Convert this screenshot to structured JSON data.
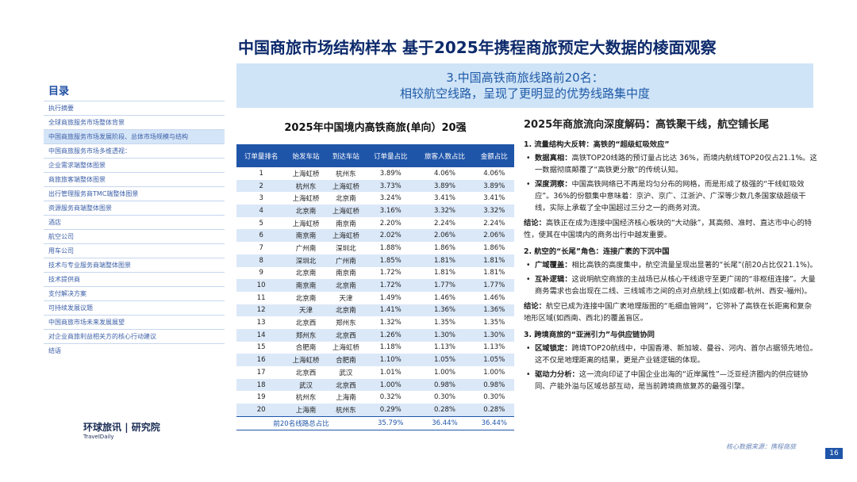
{
  "header": {
    "title": "中国商旅市场结构样本 基于2025年携程商旅预定大数据的棱面观察"
  },
  "sidebar": {
    "title": "目录",
    "items": [
      "执行摘要",
      "全球商旅服务市场整体背景",
      "中国商旅服务市场发展阶段、总体市场规模与结构",
      "中国商旅服务市场多维透视：",
      "企业需求端整体图景",
      "商旅旅客端整体图景",
      "出行管理服务商TMC端整体图景",
      "资源服务商端整体图景",
      "酒店",
      "航空公司",
      "用车公司",
      "技术与专业服务商端整体图景",
      "技术提供商",
      "支付解决方案",
      "可持续发展议题",
      "中国商旅市场未来发展展望",
      "对企业商旅利益相关方的核心行动建议",
      "结语"
    ],
    "logo": {
      "brand": "环球旅讯",
      "brand_en": "TravelDaily",
      "institute": "研究院"
    }
  },
  "banner": {
    "line1": "3.中国高铁商旅线路前20名：",
    "line2": "相较航空线路，呈现了更明显的优势线路集中度"
  },
  "table": {
    "title": "2025年中国境内高铁商旅(单向）20强",
    "headers": [
      "订单量排名",
      "始发车站",
      "到达车站",
      "订单量占比",
      "旅客人数占比",
      "金额占比"
    ],
    "rows": [
      [
        "1",
        "上海虹桥",
        "杭州东",
        "3.89%",
        "4.06%",
        "4.06%"
      ],
      [
        "2",
        "杭州东",
        "上海虹桥",
        "3.73%",
        "3.89%",
        "3.89%"
      ],
      [
        "3",
        "上海虹桥",
        "北京南",
        "3.24%",
        "3.41%",
        "3.41%"
      ],
      [
        "4",
        "北京南",
        "上海虹桥",
        "3.16%",
        "3.32%",
        "3.32%"
      ],
      [
        "5",
        "上海虹桥",
        "南京南",
        "2.20%",
        "2.24%",
        "2.24%"
      ],
      [
        "6",
        "南京南",
        "上海虹桥",
        "2.02%",
        "2.06%",
        "2.06%"
      ],
      [
        "7",
        "广州南",
        "深圳北",
        "1.88%",
        "1.86%",
        "1.86%"
      ],
      [
        "8",
        "深圳北",
        "广州南",
        "1.85%",
        "1.81%",
        "1.81%"
      ],
      [
        "9",
        "北京南",
        "南京南",
        "1.72%",
        "1.81%",
        "1.81%"
      ],
      [
        "10",
        "南京南",
        "北京南",
        "1.72%",
        "1.77%",
        "1.77%"
      ],
      [
        "11",
        "北京南",
        "天津",
        "1.49%",
        "1.46%",
        "1.46%"
      ],
      [
        "12",
        "天津",
        "北京南",
        "1.41%",
        "1.36%",
        "1.36%"
      ],
      [
        "13",
        "北京西",
        "郑州东",
        "1.32%",
        "1.35%",
        "1.35%"
      ],
      [
        "14",
        "郑州东",
        "北京西",
        "1.26%",
        "1.30%",
        "1.30%"
      ],
      [
        "15",
        "合肥南",
        "上海虹桥",
        "1.18%",
        "1.13%",
        "1.13%"
      ],
      [
        "16",
        "上海虹桥",
        "合肥南",
        "1.10%",
        "1.05%",
        "1.05%"
      ],
      [
        "17",
        "北京西",
        "武汉",
        "1.01%",
        "1.00%",
        "1.00%"
      ],
      [
        "18",
        "武汉",
        "北京西",
        "1.00%",
        "0.98%",
        "0.98%"
      ],
      [
        "19",
        "杭州东",
        "上海南",
        "0.32%",
        "0.30%",
        "0.30%"
      ],
      [
        "20",
        "上海南",
        "杭州东",
        "0.29%",
        "0.28%",
        "0.28%"
      ]
    ],
    "total": [
      "前20名线路总占比",
      "35.79%",
      "36.44%",
      "36.44%"
    ]
  },
  "analysis": {
    "title": "2025年商旅流向深度解码：高铁聚干线，航空铺长尾",
    "sections": [
      {
        "heading": "1. 流量结构大反转：高铁的“超级虹吸效应”",
        "bullets": [
          {
            "label": "数据真相：",
            "text": "高铁TOP20线路的预订量占比达 36%，而境内航线TOP20仅占21.1%。这一数据彻底颠覆了“高铁更分散”的传统认知。"
          },
          {
            "label": "深度洞察：",
            "text": "中国高铁网络已不再是均匀分布的网格，而是形成了极强的“干线虹吸效应”。36%的份额集中意味着：京沪、京广、江浙沪、广深等少数几条国家级超级干线，实际上承载了全中国超过三分之一的商务对流。"
          }
        ],
        "conclusion": {
          "label": "结论：",
          "text": "高铁正在成为连接中国经济核心板块的“大动脉”，其高频、准时、直达市中心的特性，使其在中国境内的商务出行中越发重要。"
        }
      },
      {
        "heading": "2. 航空的“长尾”角色：连接广袤的下沉中国",
        "bullets": [
          {
            "label": "广域覆盖：",
            "text": "相比高铁的高度集中，航空流量呈现出显著的“长尾”(前20占比仅21.1%)。"
          },
          {
            "label": "互补逻辑：",
            "text": "这说明航空商旅的主战场已从核心干线退守至更广阔的“非枢纽连接”。大量商务需求也会出现在二线、三线城市之间的点对点航线上(如成都-杭州、西安-福州)。"
          }
        ],
        "conclusion": {
          "label": "结论：",
          "text": "航空已成为连接中国广袤地理版图的“毛细血管网”，它弥补了高铁在长距离和复杂地形区域(如西南、西北)的覆盖盲区。"
        }
      },
      {
        "heading": "3. 跨境商旅的“亚洲引力”与供应链协同",
        "bullets": [
          {
            "label": "区域锁定：",
            "text": "跨境TOP20航线中，中国香港、新加坡、曼谷、河内、首尔占据领先地位。这不仅是地理距离的结果，更是产业链逻辑的体现。"
          },
          {
            "label": "驱动力分析：",
            "text": "这一流向印证了中国企业出海的“近岸属性”—泛亚经济圈内的供应链协同、产能外溢与区域总部互动，是当前跨境商旅复苏的最强引擎。"
          }
        ]
      }
    ]
  },
  "footer": {
    "source": "核心数据来源：携程商旅",
    "page": "16"
  }
}
